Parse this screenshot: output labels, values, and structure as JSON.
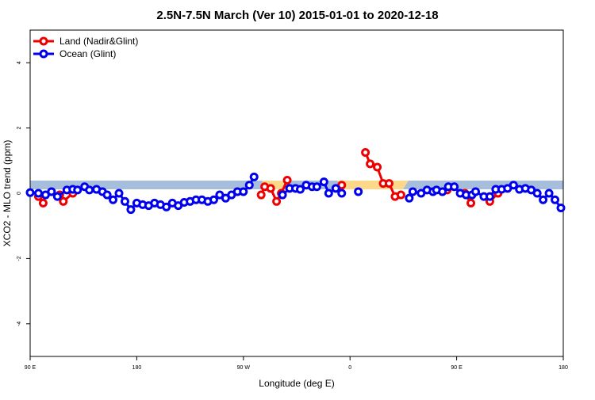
{
  "chart_data": {
    "type": "line",
    "title": "2.5N-7.5N March (Ver 10)   2015-01-01 to 2020-12-18",
    "xlabel": "Longitude (deg E)",
    "ylabel": "XCO2 - MLO trend (ppm)",
    "xlim": [
      90,
      540
    ],
    "ylim": [
      -5,
      5
    ],
    "xticks": [
      {
        "value": 90,
        "label": "90 E"
      },
      {
        "value": 180,
        "label": "180"
      },
      {
        "value": 270,
        "label": "90 W"
      },
      {
        "value": 360,
        "label": "0"
      },
      {
        "value": 450,
        "label": "90 E"
      },
      {
        "value": 540,
        "label": "180"
      }
    ],
    "yticks": [
      -4,
      -2,
      0,
      2,
      4
    ],
    "legend": "top-left",
    "series": [
      {
        "name": "Land (Nadir&Glint)",
        "color": "#ee0000",
        "x": [
          97,
          101,
          null,
          115,
          118,
          126,
          null,
          285,
          288,
          293,
          298,
          302,
          307,
          null,
          353,
          null,
          373,
          377,
          383,
          388,
          393,
          398,
          403,
          null,
          442,
          null,
          457,
          462,
          null,
          478,
          485
        ],
        "values": [
          -0.1,
          -0.3,
          null,
          -0.05,
          -0.25,
          0,
          null,
          -0.05,
          0.2,
          0.15,
          -0.25,
          0,
          0.4,
          null,
          0.25,
          null,
          1.25,
          0.9,
          0.8,
          0.3,
          0.3,
          -0.1,
          -0.05,
          null,
          0.1,
          null,
          0,
          -0.3,
          null,
          -0.25,
          0
        ]
      },
      {
        "name": "Ocean (Glint)",
        "color": "#0000ee",
        "x": [
          90,
          97,
          103,
          108,
          113,
          121,
          126,
          130,
          136,
          140,
          146,
          151,
          155,
          160,
          165,
          170,
          175,
          180,
          185,
          190,
          195,
          200,
          205,
          210,
          215,
          220,
          225,
          230,
          235,
          240,
          245,
          250,
          255,
          260,
          265,
          270,
          275,
          279,
          null,
          303,
          309,
          314,
          318,
          323,
          328,
          332,
          338,
          342,
          348,
          353,
          null,
          367,
          null,
          410,
          413,
          420,
          425,
          430,
          433,
          438,
          443,
          448,
          453,
          458,
          463,
          466,
          473,
          478,
          483,
          488,
          493,
          498,
          503,
          508,
          513,
          518,
          523,
          528,
          533,
          538
        ],
        "values": [
          0.02,
          0,
          -0.05,
          0.05,
          -0.1,
          0.1,
          0.12,
          0.1,
          0.2,
          0.1,
          0.12,
          0.05,
          -0.05,
          -0.2,
          0,
          -0.25,
          -0.5,
          -0.3,
          -0.35,
          -0.38,
          -0.3,
          -0.35,
          -0.42,
          -0.3,
          -0.38,
          -0.28,
          -0.25,
          -0.2,
          -0.2,
          -0.25,
          -0.2,
          -0.05,
          -0.15,
          -0.05,
          0.05,
          0.05,
          0.25,
          0.5,
          null,
          -0.05,
          0.15,
          0.15,
          0.12,
          0.25,
          0.2,
          0.2,
          0.35,
          0,
          0.15,
          0,
          null,
          0.05,
          null,
          -0.15,
          0.05,
          0,
          0.1,
          0.05,
          0.1,
          0.05,
          0.2,
          0.2,
          0,
          -0.05,
          -0.05,
          0.05,
          -0.1,
          -0.1,
          0.12,
          0.12,
          0.15,
          0.25,
          0.12,
          0.15,
          0.1,
          0,
          -0.2,
          0,
          -0.2,
          -0.45
        ]
      }
    ]
  }
}
